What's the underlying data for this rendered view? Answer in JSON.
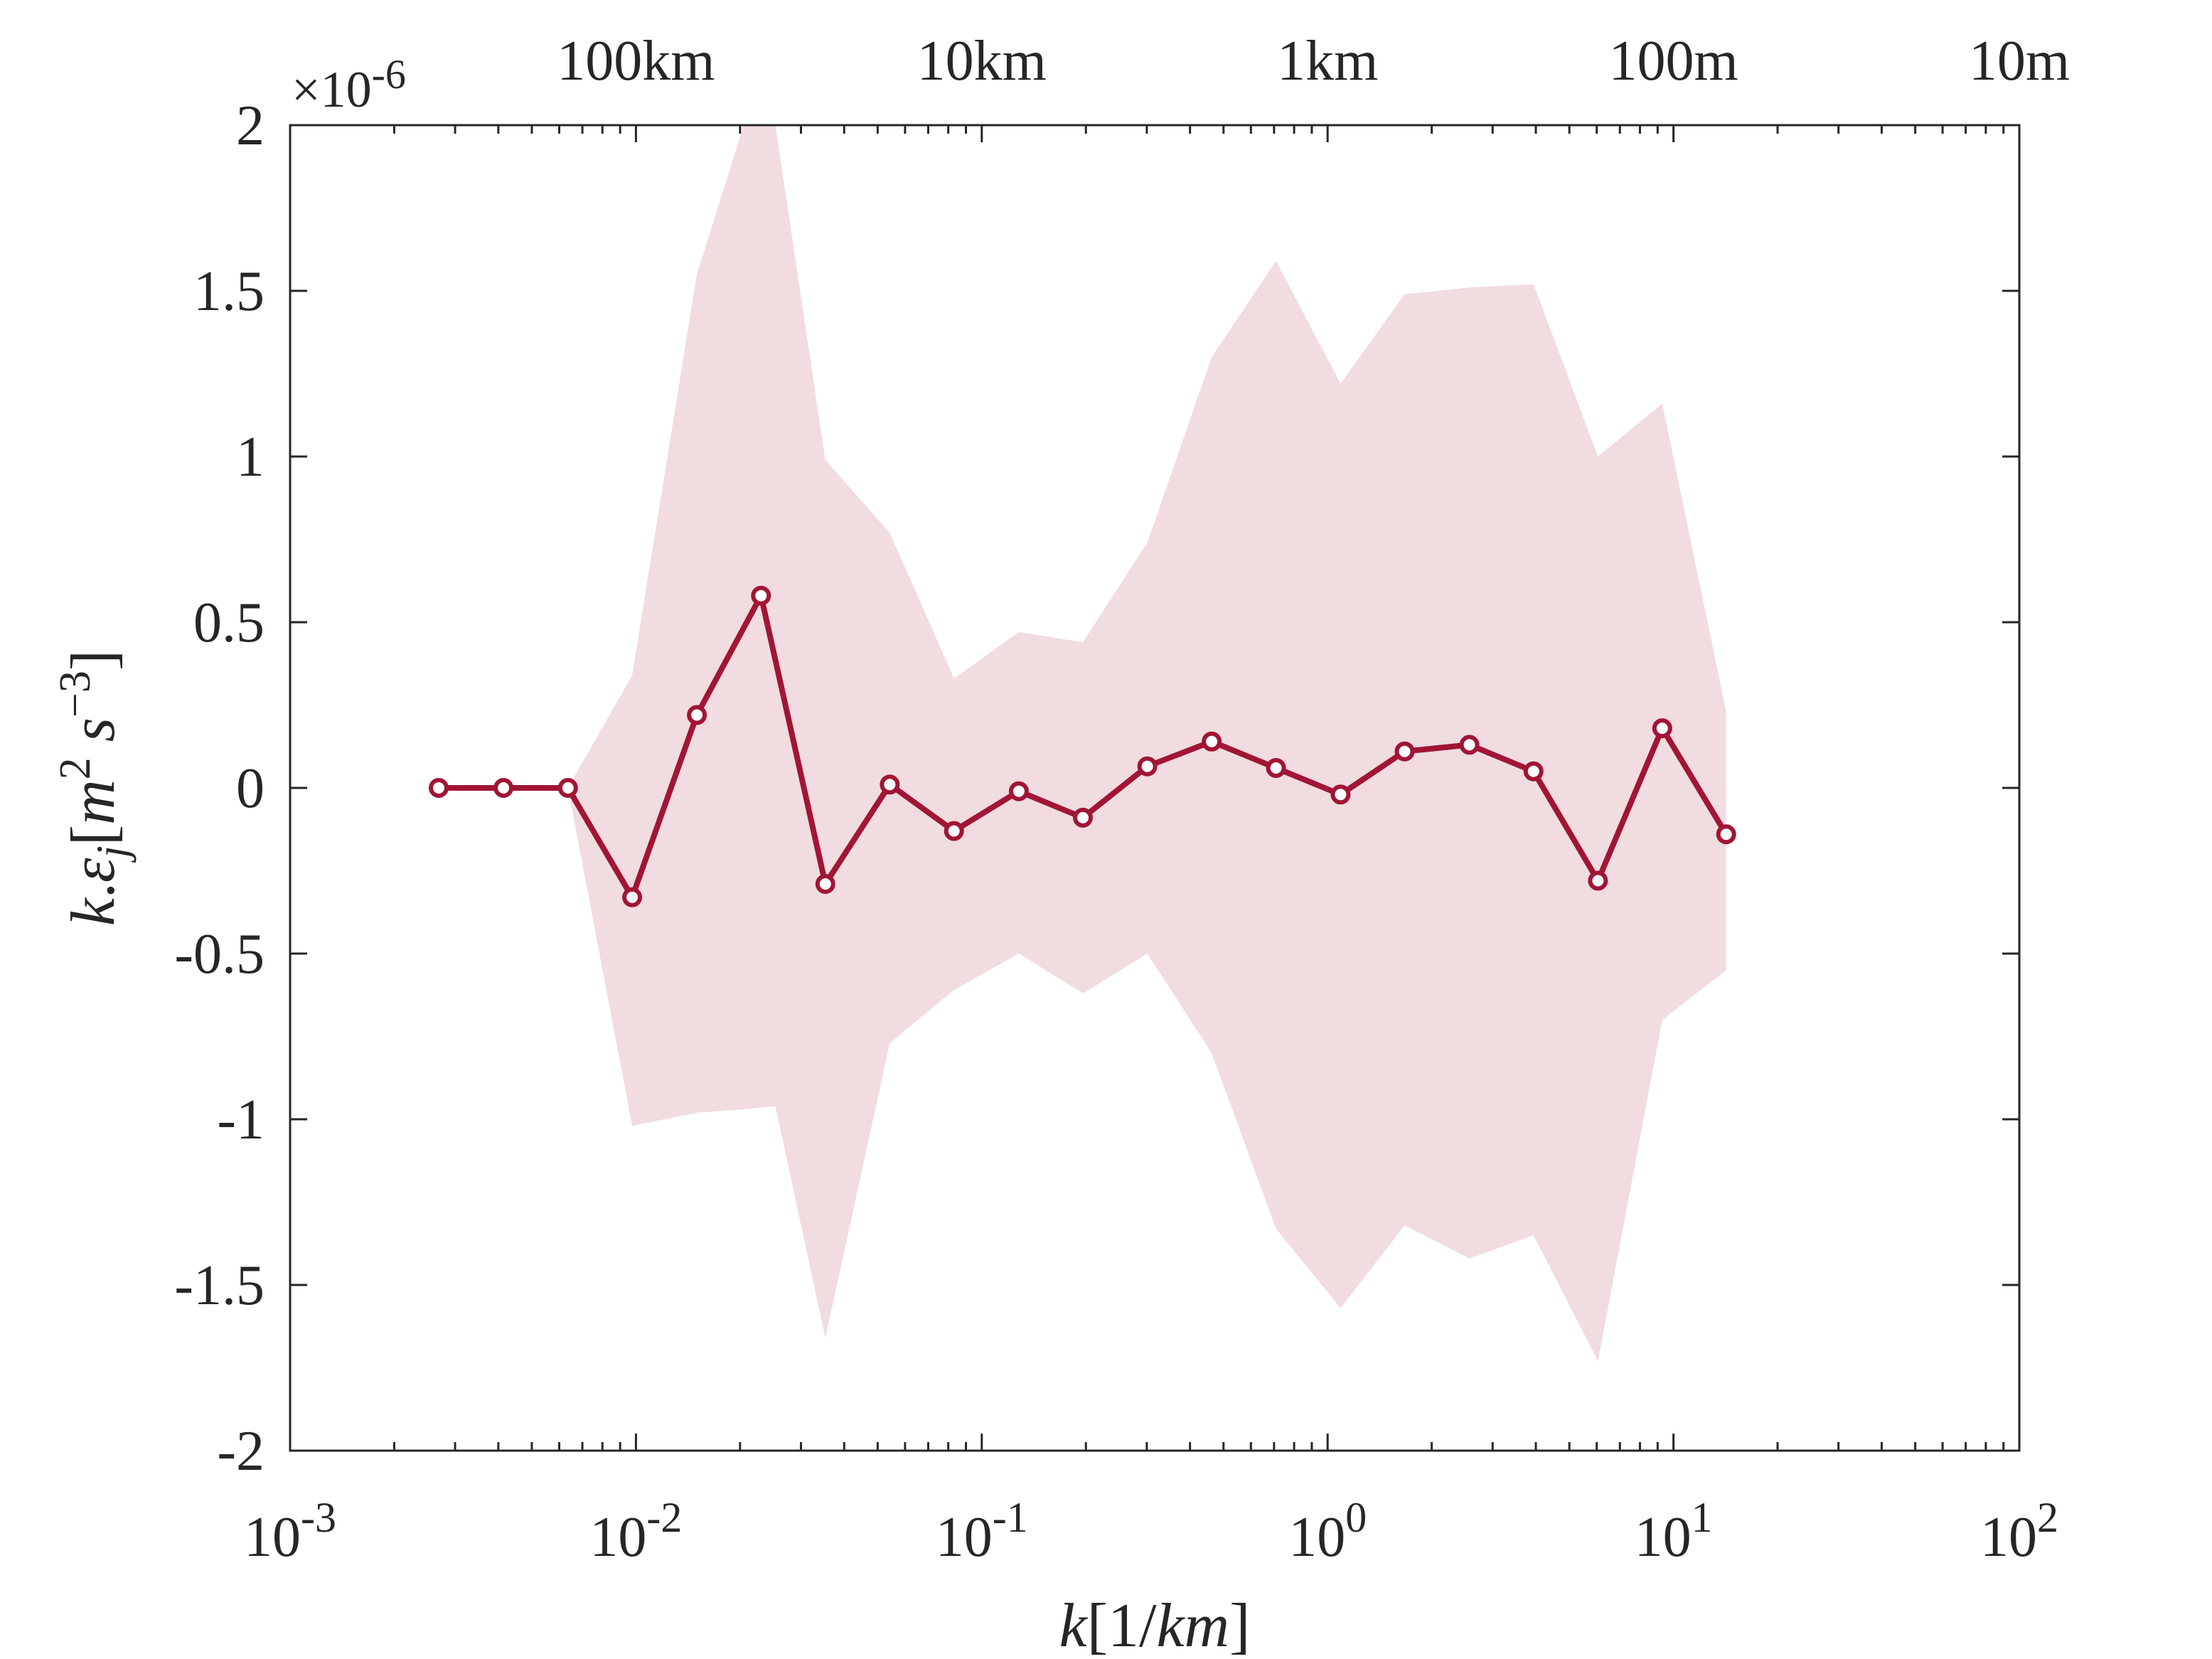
{
  "chart_data": {
    "type": "line",
    "xscale": "log",
    "xlim": [
      0.001,
      100
    ],
    "ylim": [
      -2,
      2
    ],
    "y_multiplier": "×10",
    "y_multiplier_exp": "-6",
    "xlabel": "k[1/km]",
    "ylabel": "k.ε_j[m^2 s^-3]",
    "x_ticks": [
      {
        "value": 0.001,
        "base": "10",
        "exp": "-3"
      },
      {
        "value": 0.01,
        "base": "10",
        "exp": "-2"
      },
      {
        "value": 0.1,
        "base": "10",
        "exp": "-1"
      },
      {
        "value": 1,
        "base": "10",
        "exp": "0"
      },
      {
        "value": 10,
        "base": "10",
        "exp": "1"
      },
      {
        "value": 100,
        "base": "10",
        "exp": "2"
      }
    ],
    "top_ticks": [
      {
        "value": 0.01,
        "label": "100km"
      },
      {
        "value": 0.1,
        "label": "10km"
      },
      {
        "value": 1,
        "label": "1km"
      },
      {
        "value": 10,
        "label": "100m"
      },
      {
        "value": 100,
        "label": "10m"
      }
    ],
    "y_ticks": [
      {
        "value": 2,
        "label": "2"
      },
      {
        "value": 1.5,
        "label": "1.5"
      },
      {
        "value": 1,
        "label": "1"
      },
      {
        "value": 0.5,
        "label": "0.5"
      },
      {
        "value": 0,
        "label": "0"
      },
      {
        "value": -0.5,
        "label": "-0.5"
      },
      {
        "value": -1,
        "label": "-1"
      },
      {
        "value": -1.5,
        "label": "-1.5"
      },
      {
        "value": -2,
        "label": "-2"
      }
    ],
    "series": [
      {
        "x": [
          0.00269,
          0.00414,
          0.00636,
          0.00975,
          0.015,
          0.023,
          0.0353,
          0.0542,
          0.0831,
          0.128,
          0.196,
          0.301,
          0.462,
          0.709,
          1.09,
          1.67,
          2.57,
          3.94,
          6.05,
          9.28,
          14.2
        ],
        "y": [
          0.0,
          0.0,
          0.0,
          -0.33,
          0.22,
          0.58,
          -0.29,
          0.01,
          -0.13,
          -0.01,
          -0.09,
          0.065,
          0.14,
          0.06,
          -0.02,
          0.11,
          0.13,
          0.05,
          -0.28,
          0.18,
          -0.14
        ],
        "color": "#a11535"
      }
    ],
    "band": {
      "x": [
        0.00636,
        0.00975,
        0.015,
        0.0205,
        0.0253,
        0.0353,
        0.0542,
        0.0831,
        0.128,
        0.196,
        0.301,
        0.462,
        0.709,
        1.09,
        1.67,
        2.57,
        3.94,
        6.05,
        9.28,
        14.2
      ],
      "upper": [
        0.0,
        0.34,
        1.55,
        2.0,
        2.0,
        0.99,
        0.77,
        0.33,
        0.47,
        0.44,
        0.74,
        1.3,
        1.59,
        1.22,
        1.49,
        1.51,
        1.52,
        1.0,
        1.16,
        0.23
      ],
      "lower": [
        0.0,
        -1.02,
        -0.98,
        -0.97,
        -0.96,
        -1.66,
        -0.77,
        -0.61,
        -0.5,
        -0.62,
        -0.5,
        -0.8,
        -1.33,
        -1.57,
        -1.32,
        -1.42,
        -1.35,
        -1.73,
        -0.7,
        -0.55
      ],
      "color": "#f1dce0"
    }
  }
}
